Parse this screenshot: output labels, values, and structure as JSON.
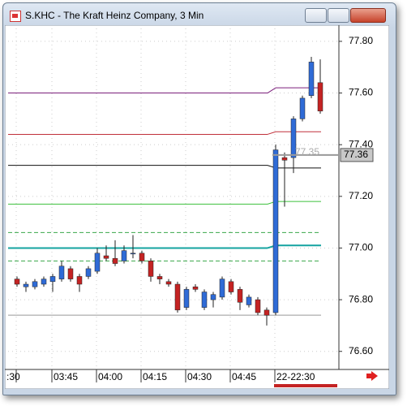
{
  "window": {
    "title": "S.KHC - The Kraft Heinz Company, 3 Min"
  },
  "chart_data": {
    "type": "candlestick",
    "categories": [
      ":30",
      null,
      null,
      null,
      "03:45",
      null,
      null,
      null,
      null,
      "04:00",
      null,
      null,
      null,
      null,
      "04:15",
      null,
      null,
      null,
      null,
      "04:30",
      null,
      null,
      null,
      null,
      "04:45",
      null,
      null,
      null,
      null,
      "22-22:30",
      null,
      null,
      null,
      null,
      null
    ],
    "open": [
      76.88,
      76.85,
      76.85,
      76.86,
      76.87,
      76.88,
      76.92,
      76.89,
      76.89,
      76.91,
      76.97,
      76.96,
      76.95,
      76.98,
      76.98,
      76.95,
      76.89,
      76.87,
      76.86,
      76.77,
      76.85,
      76.77,
      76.8,
      76.81,
      76.87,
      76.84,
      76.78,
      76.8,
      76.76,
      76.75,
      77.35,
      77.35,
      77.5,
      77.59,
      77.64
    ],
    "high": [
      76.89,
      76.87,
      76.88,
      76.89,
      76.9,
      76.95,
      76.93,
      76.9,
      76.93,
      77.0,
      77.01,
      77.03,
      77.01,
      77.05,
      76.99,
      76.96,
      76.9,
      76.88,
      76.87,
      76.85,
      76.86,
      76.84,
      76.83,
      76.89,
      76.88,
      76.85,
      76.82,
      76.81,
      76.77,
      77.4,
      77.37,
      77.51,
      77.59,
      77.74,
      77.73
    ],
    "low": [
      76.85,
      76.83,
      76.84,
      76.85,
      76.83,
      76.87,
      76.87,
      76.83,
      76.88,
      76.9,
      76.95,
      76.93,
      76.94,
      76.96,
      76.94,
      76.87,
      76.86,
      76.85,
      76.75,
      76.76,
      76.83,
      76.76,
      76.77,
      76.8,
      76.82,
      76.76,
      76.77,
      76.74,
      76.7,
      76.74,
      77.16,
      77.29,
      77.49,
      77.58,
      77.52
    ],
    "close": [
      76.86,
      76.86,
      76.87,
      76.88,
      76.89,
      76.93,
      76.88,
      76.86,
      76.92,
      76.98,
      76.96,
      76.94,
      76.99,
      76.98,
      76.95,
      76.89,
      76.88,
      76.86,
      76.76,
      76.84,
      76.84,
      76.83,
      76.82,
      76.88,
      76.83,
      76.79,
      76.81,
      76.75,
      76.74,
      77.38,
      77.34,
      77.5,
      77.58,
      77.72,
      77.53
    ],
    "up_color": "#2f6bd6",
    "down_color": "#c42323",
    "levels": [
      {
        "color": "#7b1f7b",
        "values": [
          77.6,
          77.62
        ]
      },
      {
        "color": "#c0303a",
        "values": [
          77.44,
          77.45
        ]
      },
      {
        "color": "#111111",
        "values": [
          77.32,
          77.31
        ]
      },
      {
        "color": "#3cc03c",
        "values": [
          77.17,
          77.18
        ]
      },
      {
        "color": "#3aa84a",
        "values": [
          77.06,
          77.06
        ],
        "dashed": true
      },
      {
        "color": "#14a3a0",
        "values": [
          77.0,
          77.01
        ]
      },
      {
        "color": "#3aa84a",
        "values": [
          76.95,
          76.95
        ],
        "dashed": true
      },
      {
        "color": "#999999",
        "values": [
          76.74,
          76.74
        ]
      }
    ],
    "last_price": 77.36,
    "annotation": "77.35",
    "ylim": [
      76.53,
      77.85
    ],
    "yticks": [
      {
        "value": 76.6,
        "label": "76.60"
      },
      {
        "value": 76.8,
        "label": "76.80"
      },
      {
        "value": 77.0,
        "label": "77.00"
      },
      {
        "value": 77.2,
        "label": "77.20"
      },
      {
        "value": 77.4,
        "label": "77.40"
      },
      {
        "value": 77.6,
        "label": "77.60"
      },
      {
        "value": 77.8,
        "label": "77.80"
      }
    ],
    "grid": true
  }
}
